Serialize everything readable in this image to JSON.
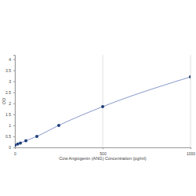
{
  "chart_data": {
    "type": "line",
    "x_label": "Cow Angiogenin (ANG) Concentration (pg/ml)",
    "y_label": "OD",
    "x": [
      0,
      15.6,
      31.25,
      62.5,
      125,
      250,
      500,
      1000
    ],
    "values": [
      0.1,
      0.15,
      0.2,
      0.3,
      0.5,
      1.0,
      1.85,
      3.2
    ],
    "color": "#1f3f7a",
    "marker": "circle",
    "line_style": "solid",
    "xlim": [
      0,
      1000
    ],
    "xticks": [
      0,
      500,
      1000
    ],
    "ylim": [
      0,
      4.2
    ],
    "yticks": [
      0,
      0.5,
      1,
      1.5,
      2,
      2.5,
      3,
      3.5,
      4
    ],
    "grid": true
  }
}
